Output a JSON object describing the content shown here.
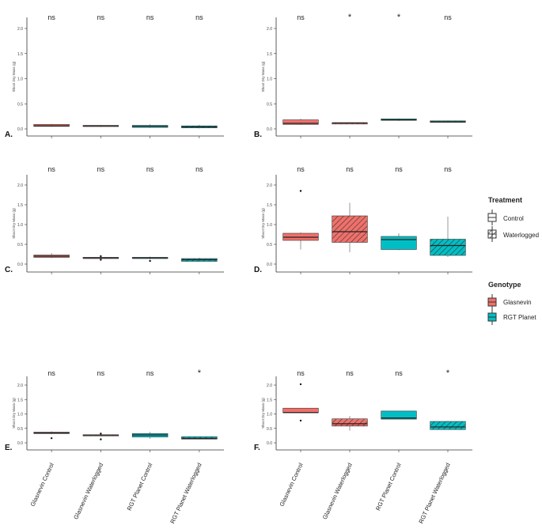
{
  "colors": {
    "glasnevin": "#F0706A",
    "rgt_planet": "#00BFC4",
    "axis": "#333333",
    "box_line": "#333333"
  },
  "x_tick_labels": [
    "Glasnevin Control",
    "Glasnevin Waterlogged",
    "RGT Planet Control",
    "RGT Planet Waterlogged"
  ],
  "legend": {
    "treatment": {
      "title": "Treatment",
      "items": [
        {
          "label": "Control",
          "pattern": "none"
        },
        {
          "label": "Waterlogged",
          "pattern": "hatch"
        }
      ]
    },
    "genotype": {
      "title": "Genotype",
      "items": [
        {
          "label": "Glasnevin",
          "color": "#F0706A"
        },
        {
          "label": "RGT Planet",
          "color": "#00BFC4"
        }
      ]
    }
  },
  "chart_data": [
    {
      "panel": "A.",
      "type": "box",
      "ylabel": "Shoot Dry Mass (g)",
      "yticks": [
        "0.0",
        "0.5",
        "1.0",
        "1.5",
        "2.0"
      ],
      "ylim": [
        -0.1,
        2.2
      ],
      "significance": [
        "ns",
        "ns",
        "ns",
        "ns"
      ],
      "boxes": [
        {
          "category": "Glasnevin Control",
          "genotype": "Glasnevin",
          "treatment": "Control",
          "min": 0.04,
          "q1": 0.05,
          "median": 0.06,
          "q3": 0.09,
          "max": 0.1,
          "outliers": []
        },
        {
          "category": "Glasnevin Waterlogged",
          "genotype": "Glasnevin",
          "treatment": "Waterlogged",
          "min": 0.04,
          "q1": 0.05,
          "median": 0.06,
          "q3": 0.07,
          "max": 0.08,
          "outliers": []
        },
        {
          "category": "RGT Planet Control",
          "genotype": "RGT Planet",
          "treatment": "Control",
          "min": 0.02,
          "q1": 0.03,
          "median": 0.05,
          "q3": 0.07,
          "max": 0.09,
          "outliers": []
        },
        {
          "category": "RGT Planet Waterlogged",
          "genotype": "RGT Planet",
          "treatment": "Waterlogged",
          "min": 0.01,
          "q1": 0.02,
          "median": 0.04,
          "q3": 0.06,
          "max": 0.08,
          "outliers": []
        }
      ]
    },
    {
      "panel": "B.",
      "type": "box",
      "ylabel": "Shoot Dry Mass (g)",
      "yticks": [
        "0.0",
        "0.5",
        "1.0",
        "1.5",
        "2.0"
      ],
      "ylim": [
        -0.1,
        2.2
      ],
      "significance": [
        "ns",
        "*",
        "*",
        "ns"
      ],
      "boxes": [
        {
          "category": "Glasnevin Control",
          "genotype": "Glasnevin",
          "treatment": "Control",
          "min": 0.08,
          "q1": 0.09,
          "median": 0.11,
          "q3": 0.18,
          "max": 0.2,
          "outliers": []
        },
        {
          "category": "Glasnevin Waterlogged",
          "genotype": "Glasnevin",
          "treatment": "Waterlogged",
          "min": 0.1,
          "q1": 0.11,
          "median": 0.12,
          "q3": 0.12,
          "max": 0.13,
          "outliers": []
        },
        {
          "category": "RGT Planet Control",
          "genotype": "RGT Planet",
          "treatment": "Control",
          "min": 0.16,
          "q1": 0.17,
          "median": 0.18,
          "q3": 0.2,
          "max": 0.21,
          "outliers": []
        },
        {
          "category": "RGT Planet Waterlogged",
          "genotype": "RGT Planet",
          "treatment": "Waterlogged",
          "min": 0.12,
          "q1": 0.13,
          "median": 0.14,
          "q3": 0.16,
          "max": 0.17,
          "outliers": []
        }
      ]
    },
    {
      "panel": "C.",
      "type": "box",
      "ylabel": "Shoot Dry Mass (g)",
      "yticks": [
        "0.0",
        "0.5",
        "1.0",
        "1.5",
        "2.0"
      ],
      "ylim": [
        -0.1,
        2.2
      ],
      "significance": [
        "ns",
        "ns",
        "ns",
        "ns"
      ],
      "boxes": [
        {
          "category": "Glasnevin Control",
          "genotype": "Glasnevin",
          "treatment": "Control",
          "min": 0.15,
          "q1": 0.17,
          "median": 0.2,
          "q3": 0.23,
          "max": 0.28,
          "outliers": []
        },
        {
          "category": "Glasnevin Waterlogged",
          "genotype": "Glasnevin",
          "treatment": "Waterlogged",
          "min": 0.15,
          "q1": 0.16,
          "median": 0.16,
          "q3": 0.17,
          "max": 0.17,
          "outliers": [
            0.2,
            0.11
          ]
        },
        {
          "category": "RGT Planet Control",
          "genotype": "RGT Planet",
          "treatment": "Control",
          "min": 0.12,
          "q1": 0.14,
          "median": 0.16,
          "q3": 0.17,
          "max": 0.19,
          "outliers": [
            0.08
          ]
        },
        {
          "category": "RGT Planet Waterlogged",
          "genotype": "RGT Planet",
          "treatment": "Waterlogged",
          "min": 0.06,
          "q1": 0.07,
          "median": 0.11,
          "q3": 0.14,
          "max": 0.16,
          "outliers": []
        }
      ]
    },
    {
      "panel": "D.",
      "type": "box",
      "ylabel": "Shoot Dry Mass (g)",
      "yticks": [
        "0.0",
        "0.5",
        "1.0",
        "1.5",
        "2.0"
      ],
      "ylim": [
        -0.1,
        2.2
      ],
      "significance": [
        "ns",
        "ns",
        "ns",
        "ns"
      ],
      "boxes": [
        {
          "category": "Glasnevin Control",
          "genotype": "Glasnevin",
          "treatment": "Control",
          "min": 0.37,
          "q1": 0.6,
          "median": 0.68,
          "q3": 0.78,
          "max": 0.8,
          "outliers": [
            1.85
          ]
        },
        {
          "category": "Glasnevin Waterlogged",
          "genotype": "Glasnevin",
          "treatment": "Waterlogged",
          "min": 0.3,
          "q1": 0.55,
          "median": 0.82,
          "q3": 1.22,
          "max": 1.55,
          "outliers": []
        },
        {
          "category": "RGT Planet Control",
          "genotype": "RGT Planet",
          "treatment": "Control",
          "min": 0.35,
          "q1": 0.37,
          "median": 0.62,
          "q3": 0.7,
          "max": 0.78,
          "outliers": []
        },
        {
          "category": "RGT Planet Waterlogged",
          "genotype": "RGT Planet",
          "treatment": "Waterlogged",
          "min": 0.18,
          "q1": 0.22,
          "median": 0.47,
          "q3": 0.63,
          "max": 1.2,
          "outliers": []
        }
      ]
    },
    {
      "panel": "E.",
      "type": "box",
      "ylabel": "Shoot Dry Mass (g)",
      "yticks": [
        "0.0",
        "0.5",
        "1.0",
        "1.5",
        "2.0"
      ],
      "ylim": [
        -0.1,
        2.2
      ],
      "significance": [
        "ns",
        "ns",
        "ns",
        "*"
      ],
      "boxes": [
        {
          "category": "Glasnevin Control",
          "genotype": "Glasnevin",
          "treatment": "Control",
          "min": 0.3,
          "q1": 0.32,
          "median": 0.34,
          "q3": 0.37,
          "max": 0.4,
          "outliers": [
            0.16
          ]
        },
        {
          "category": "Glasnevin Waterlogged",
          "genotype": "Glasnevin",
          "treatment": "Waterlogged",
          "min": 0.23,
          "q1": 0.25,
          "median": 0.27,
          "q3": 0.28,
          "max": 0.3,
          "outliers": [
            0.32,
            0.12
          ]
        },
        {
          "category": "RGT Planet Control",
          "genotype": "RGT Planet",
          "treatment": "Control",
          "min": 0.14,
          "q1": 0.2,
          "median": 0.27,
          "q3": 0.32,
          "max": 0.38,
          "outliers": []
        },
        {
          "category": "RGT Planet Waterlogged",
          "genotype": "RGT Planet",
          "treatment": "Waterlogged",
          "min": 0.12,
          "q1": 0.13,
          "median": 0.15,
          "q3": 0.21,
          "max": 0.23,
          "outliers": []
        }
      ]
    },
    {
      "panel": "F.",
      "type": "box",
      "ylabel": "Shoot Dry Mass (g)",
      "yticks": [
        "0.0",
        "0.5",
        "1.0",
        "1.5",
        "2.0"
      ],
      "ylim": [
        -0.1,
        2.2
      ],
      "significance": [
        "ns",
        "ns",
        "ns",
        "*"
      ],
      "boxes": [
        {
          "category": "Glasnevin Control",
          "genotype": "Glasnevin",
          "treatment": "Control",
          "min": 1.04,
          "q1": 1.04,
          "median": 1.05,
          "q3": 1.2,
          "max": 1.2,
          "outliers": [
            2.03,
            0.77
          ]
        },
        {
          "category": "Glasnevin Waterlogged",
          "genotype": "Glasnevin",
          "treatment": "Waterlogged",
          "min": 0.42,
          "q1": 0.58,
          "median": 0.66,
          "q3": 0.83,
          "max": 0.93,
          "outliers": []
        },
        {
          "category": "RGT Planet Control",
          "genotype": "RGT Planet",
          "treatment": "Control",
          "min": 0.82,
          "q1": 0.82,
          "median": 0.86,
          "q3": 1.1,
          "max": 1.1,
          "outliers": []
        },
        {
          "category": "RGT Planet Waterlogged",
          "genotype": "RGT Planet",
          "treatment": "Waterlogged",
          "min": 0.46,
          "q1": 0.46,
          "median": 0.55,
          "q3": 0.74,
          "max": 0.76,
          "outliers": []
        }
      ]
    }
  ]
}
